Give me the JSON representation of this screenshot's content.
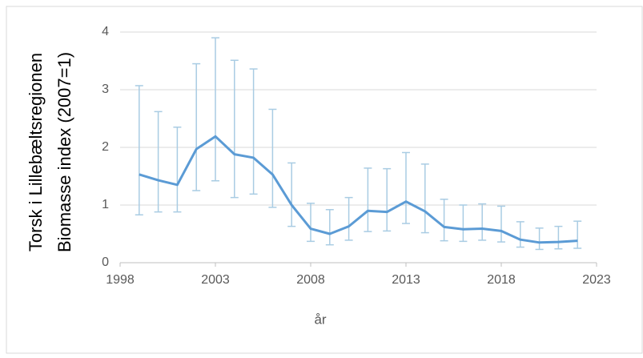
{
  "chart_data": {
    "type": "line",
    "y_label": [
      "Torsk i Lillebæltsregionen",
      "Biomasse index (2007=1)"
    ],
    "x_label": "år",
    "x": [
      1999,
      2000,
      2001,
      2002,
      2003,
      2004,
      2005,
      2006,
      2007,
      2008,
      2009,
      2010,
      2011,
      2012,
      2013,
      2014,
      2015,
      2016,
      2017,
      2018,
      2019,
      2020,
      2021,
      2022
    ],
    "series": [
      {
        "name": "Biomasse index",
        "color": "#5b9bd5",
        "error_color": "#a9cce3",
        "values": [
          1.53,
          1.43,
          1.35,
          1.97,
          2.19,
          1.88,
          1.82,
          1.53,
          1.0,
          0.59,
          0.5,
          0.63,
          0.9,
          0.88,
          1.06,
          0.89,
          0.62,
          0.58,
          0.59,
          0.55,
          0.4,
          0.35,
          0.36,
          0.38
        ],
        "lower": [
          0.83,
          0.88,
          0.88,
          1.25,
          1.42,
          1.13,
          1.19,
          0.96,
          0.63,
          0.37,
          0.31,
          0.39,
          0.54,
          0.55,
          0.68,
          0.52,
          0.38,
          0.37,
          0.39,
          0.36,
          0.27,
          0.23,
          0.24,
          0.25
        ],
        "upper": [
          3.07,
          2.62,
          2.35,
          3.45,
          3.9,
          3.51,
          3.36,
          2.66,
          1.73,
          1.03,
          0.92,
          1.13,
          1.64,
          1.63,
          1.91,
          1.71,
          1.1,
          1.0,
          1.02,
          0.98,
          0.71,
          0.6,
          0.63,
          0.72
        ]
      }
    ],
    "xlim": [
      1998,
      2023
    ],
    "xticks": [
      1998,
      2003,
      2008,
      2013,
      2018,
      2023
    ],
    "ylim": [
      0,
      4
    ],
    "yticks": [
      0,
      1,
      2,
      3,
      4
    ],
    "grid": true
  }
}
